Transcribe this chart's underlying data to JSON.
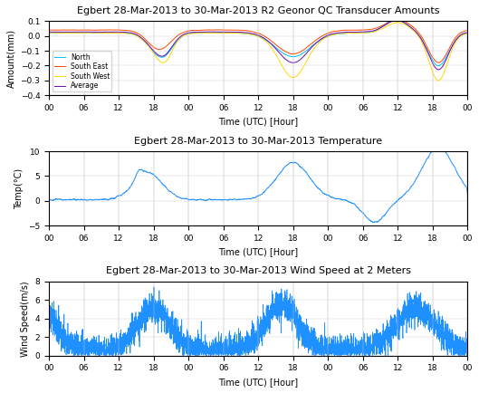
{
  "title1": "Egbert 28-Mar-2013 to 30-Mar-2013 R2 Geonor QC Transducer Amounts",
  "title2": "Egbert 28-Mar-2013 to 30-Mar-2013 Temperature",
  "title3": "Egbert 28-Mar-2013 to 30-Mar-2013 Wind Speed at 2 Meters",
  "ylabel1": "Amount(mm)",
  "ylabel2": "Temp(°C)",
  "ylabel3": "Wind Speed(m/s)",
  "xlabel": "Time (UTC) [Hour]",
  "xtick_labels": [
    "00",
    "06",
    "12",
    "18",
    "00",
    "06",
    "12",
    "18",
    "00",
    "06",
    "12",
    "18",
    "00"
  ],
  "ylim1": [
    -0.4,
    0.1
  ],
  "ylim2": [
    -5,
    10
  ],
  "ylim3": [
    0,
    8
  ],
  "yticks1": [
    0.1,
    0.0,
    -0.1,
    -0.2,
    -0.3,
    -0.4
  ],
  "yticks2": [
    -5,
    0,
    5,
    10
  ],
  "yticks3": [
    0,
    2,
    4,
    6,
    8
  ],
  "line_color_north": "#00BFFF",
  "line_color_southeast": "#FF4500",
  "line_color_southwest": "#FFD700",
  "line_color_average": "#6A0DAD",
  "line_color_temp": "#1E90FF",
  "line_color_wind": "#1E90FF",
  "legend_labels": [
    "North",
    "South East",
    "South West",
    "Average"
  ],
  "n_points": 4320,
  "title_fontsize": 8,
  "label_fontsize": 7,
  "tick_fontsize": 6.5
}
